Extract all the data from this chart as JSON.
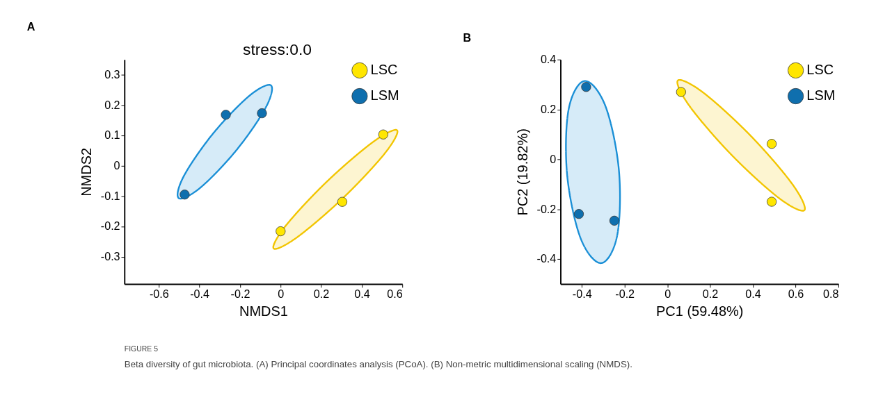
{
  "chart_data": [
    {
      "type": "scatter",
      "title": "A",
      "xlabel": "NMDS1",
      "ylabel": "NMDS2",
      "xlim": [
        -0.77,
        0.6
      ],
      "ylim": [
        -0.39,
        0.35
      ],
      "xticks": [
        -0.6,
        -0.4,
        -0.2,
        0,
        0.2,
        0.4,
        0.6
      ],
      "yticks": [
        -0.3,
        -0.2,
        -0.1,
        0,
        0.1,
        0.2,
        0.3
      ],
      "grid": false,
      "legend": "top right",
      "marker": "circle",
      "annotations": [
        "stress:0.0",
        "FIGURE 5",
        "Beta diversity of gut microbiota. (A) Principal coordinates analysis (PCoA). (B) Non-metric multidimensional scaling (NMDS)."
      ],
      "series": [
        {
          "type": "area",
          "marker": "none",
          "color": "#1a8fd6",
          "x": [
            -0.048,
            -0.073,
            -0.217,
            -0.395,
            -0.502,
            -0.477,
            -0.333,
            -0.155
          ],
          "values": [
            0.265,
            0.192,
            0.052,
            -0.072,
            -0.107,
            -0.034,
            0.106,
            0.23
          ]
        },
        {
          "type": "area",
          "marker": "none",
          "color": "#f2c500",
          "x": [
            0.574,
            0.515,
            0.313,
            0.085,
            -0.034,
            0.025,
            0.227,
            0.455
          ],
          "values": [
            0.117,
            0.042,
            -0.103,
            -0.234,
            -0.273,
            -0.198,
            -0.053,
            0.078
          ]
        },
        {
          "name": "LSC",
          "color": "#ffe600",
          "x": [
            0.506,
            0.304,
            0.0
          ],
          "values": [
            0.103,
            -0.119,
            -0.216
          ]
        },
        {
          "name": "LSM",
          "color": "#0f6fae",
          "x": [
            -0.27,
            -0.092,
            -0.473
          ],
          "values": [
            0.168,
            0.173,
            -0.095
          ]
        }
      ]
    },
    {
      "type": "scatter",
      "title": "B",
      "xlabel": "PC1 (59.48%)",
      "ylabel": "PC2 (19.82%)",
      "xlim": [
        -0.5,
        0.8
      ],
      "ylim": [
        -0.5,
        0.4
      ],
      "xticks": [
        -0.4,
        -0.2,
        0,
        0.2,
        0.4,
        0.6,
        0.8
      ],
      "yticks": [
        -0.4,
        -0.2,
        0,
        0.2,
        0.4
      ],
      "grid": false,
      "legend": "top right",
      "marker": "circle",
      "series": [
        {
          "type": "area",
          "marker": "none",
          "color": "#1a8fd6",
          "x": [
            -0.387,
            -0.29,
            -0.227,
            -0.234,
            -0.309,
            -0.406,
            -0.469,
            -0.462
          ],
          "values": [
            0.314,
            0.214,
            -0.041,
            -0.302,
            -0.416,
            -0.316,
            -0.061,
            0.2
          ]
        },
        {
          "type": "area",
          "marker": "none",
          "color": "#f2c500",
          "x": [
            0.641,
            0.585,
            0.389,
            0.167,
            0.049,
            0.105,
            0.301,
            0.523
          ],
          "values": [
            -0.204,
            -0.1,
            0.095,
            0.268,
            0.316,
            0.212,
            0.017,
            -0.156
          ]
        },
        {
          "name": "LSC",
          "color": "#ffe600",
          "x": [
            0.064,
            0.488,
            0.488
          ],
          "values": [
            0.27,
            0.062,
            -0.17
          ]
        },
        {
          "name": "LSM",
          "color": "#0f6fae",
          "x": [
            -0.38,
            -0.414,
            -0.248
          ],
          "values": [
            0.29,
            -0.219,
            -0.246
          ]
        }
      ]
    }
  ]
}
